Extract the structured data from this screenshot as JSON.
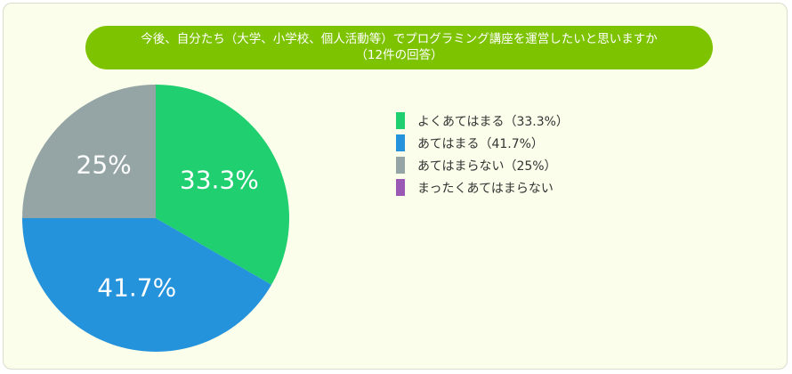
{
  "title": {
    "line1": "今後、自分たち（大学、小学校、個人活動等）でプログラミング講座を運営したいと思いますか",
    "line2": "（12件の回答）"
  },
  "colors": {
    "panel_bg": "#fbfeea",
    "title_bg": "#7ec300",
    "title_text": "#ffffff"
  },
  "chart_data": {
    "type": "pie",
    "title": "今後、自分たち（大学、小学校、個人活動等）でプログラミング講座を運営したいと思いますか（12件の回答）",
    "slices": [
      {
        "name": "よくあてはまる",
        "legend_label": "よくあてはまる（33.3%）",
        "value": 33.3,
        "data_label": "33.3%",
        "color": "#20cf6f"
      },
      {
        "name": "あてはまる",
        "legend_label": "あてはまる（41.7%）",
        "value": 41.7,
        "data_label": "41.7%",
        "color": "#2592dc"
      },
      {
        "name": "あてはまらない",
        "legend_label": "あてはまらない（25%）",
        "value": 25,
        "data_label": "25%",
        "color": "#95a5a6"
      },
      {
        "name": "まったくあてはまらない",
        "legend_label": "まったくあてはまらない",
        "value": 0,
        "data_label": "",
        "color": "#9b59b6"
      }
    ],
    "start_angle": "12 o'clock",
    "direction": "clockwise",
    "legend_position": "right"
  }
}
